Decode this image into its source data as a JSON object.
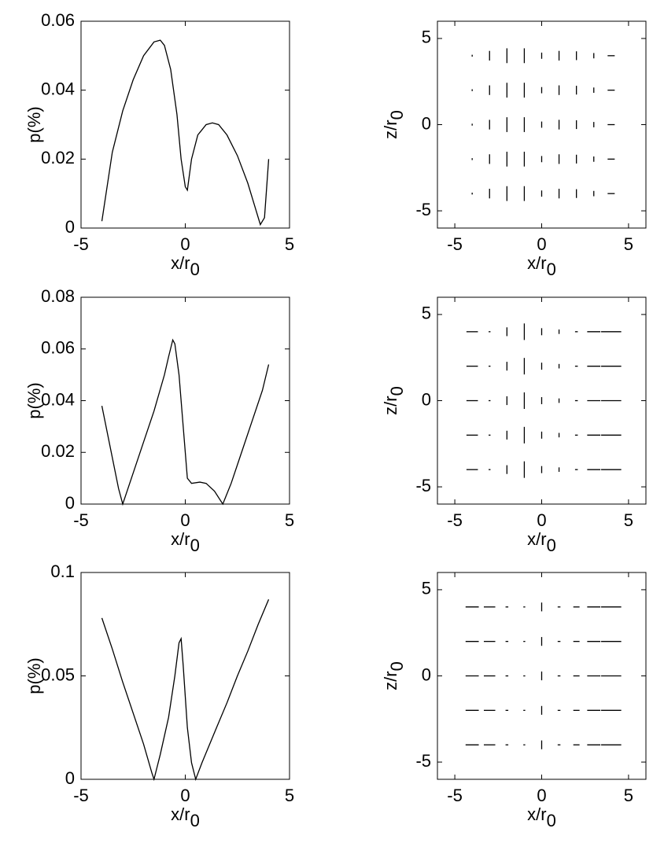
{
  "chart_data": [
    {
      "type": "line",
      "x_label": "x/r",
      "x_label_sub": "0",
      "y_label": "p(%)",
      "color": "#000000",
      "xlim": [
        -5,
        5
      ],
      "xticks": [
        -5,
        0,
        5
      ],
      "ylim": [
        0,
        0.06
      ],
      "yticks": [
        0,
        0.02,
        0.04,
        0.06
      ],
      "x": [
        -4,
        -3.5,
        -3,
        -2.5,
        -2,
        -1.5,
        -1.2,
        -1,
        -0.7,
        -0.4,
        -0.2,
        0,
        0.1,
        0.3,
        0.6,
        1,
        1.3,
        1.6,
        2,
        2.5,
        3,
        3.4,
        3.6,
        3.8,
        4
      ],
      "values": [
        0.002,
        0.022,
        0.034,
        0.043,
        0.05,
        0.054,
        0.0545,
        0.053,
        0.046,
        0.033,
        0.02,
        0.012,
        0.011,
        0.02,
        0.027,
        0.03,
        0.0305,
        0.03,
        0.027,
        0.021,
        0.013,
        0.005,
        0.001,
        0.003,
        0.02
      ]
    },
    {
      "type": "quiver",
      "x_label": "x/r",
      "x_label_sub": "0",
      "y_label": "z/r",
      "y_label_sub": "0",
      "color": "#000000",
      "xlim": [
        -6,
        6
      ],
      "xticks": [
        -5,
        0,
        5
      ],
      "ylim": [
        -6,
        6
      ],
      "yticks": [
        -5,
        0,
        5
      ],
      "x": [
        -4,
        -3,
        -2,
        -1,
        0,
        1,
        2,
        3,
        4
      ],
      "z": [
        4,
        2,
        0,
        -2,
        -4
      ],
      "lengths": [
        0.05,
        0.5,
        0.8,
        0.8,
        0.3,
        0.5,
        0.45,
        0.25,
        0.35
      ],
      "angles": [
        90,
        90,
        90,
        90,
        90,
        90,
        90,
        90,
        0
      ]
    },
    {
      "type": "line",
      "x_label": "x/r",
      "x_label_sub": "0",
      "y_label": "p(%)",
      "color": "#000000",
      "xlim": [
        -5,
        5
      ],
      "xticks": [
        -5,
        0,
        5
      ],
      "ylim": [
        0,
        0.08
      ],
      "yticks": [
        0,
        0.02,
        0.04,
        0.06,
        0.08
      ],
      "x": [
        -4,
        -3.5,
        -3.2,
        -3,
        -2.5,
        -2,
        -1.5,
        -1,
        -0.8,
        -0.6,
        -0.5,
        -0.3,
        -0.1,
        0.1,
        0.3,
        0.7,
        1,
        1.4,
        1.8,
        2.2,
        2.7,
        3.2,
        3.7,
        4
      ],
      "values": [
        0.038,
        0.018,
        0.006,
        0,
        0.012,
        0.024,
        0.036,
        0.05,
        0.057,
        0.0635,
        0.062,
        0.05,
        0.03,
        0.01,
        0.008,
        0.0085,
        0.008,
        0.005,
        0,
        0.008,
        0.02,
        0.032,
        0.044,
        0.054
      ]
    },
    {
      "type": "quiver",
      "x_label": "x/r",
      "x_label_sub": "0",
      "y_label": "z/r",
      "y_label_sub": "0",
      "color": "#000000",
      "xlim": [
        -6,
        6
      ],
      "xticks": [
        -5,
        0,
        5
      ],
      "ylim": [
        -6,
        6
      ],
      "yticks": [
        -5,
        0,
        5
      ],
      "x": [
        -4,
        -3,
        -2,
        -1,
        0,
        1,
        2,
        3,
        4
      ],
      "z": [
        4,
        2,
        0,
        -2,
        -4
      ],
      "lengths": [
        0.6,
        0.05,
        0.45,
        0.9,
        0.35,
        0.2,
        0.1,
        0.7,
        1.1
      ],
      "angles": [
        0,
        0,
        90,
        90,
        90,
        90,
        0,
        0,
        0
      ]
    },
    {
      "type": "line",
      "x_label": "x/r",
      "x_label_sub": "0",
      "y_label": "p(%)",
      "color": "#000000",
      "xlim": [
        -5,
        5
      ],
      "xticks": [
        -5,
        0,
        5
      ],
      "ylim": [
        0,
        0.1
      ],
      "yticks": [
        0,
        0.05,
        0.1
      ],
      "x": [
        -4,
        -3.5,
        -3,
        -2.5,
        -2,
        -1.6,
        -1.5,
        -1.2,
        -0.8,
        -0.5,
        -0.3,
        -0.2,
        -0.1,
        0.1,
        0.3,
        0.5,
        0.8,
        1.5,
        2,
        2.5,
        3,
        3.5,
        4
      ],
      "values": [
        0.078,
        0.063,
        0.047,
        0.032,
        0.017,
        0.003,
        0,
        0.012,
        0.03,
        0.05,
        0.066,
        0.068,
        0.055,
        0.025,
        0.008,
        0,
        0.008,
        0.025,
        0.037,
        0.05,
        0.062,
        0.075,
        0.087
      ]
    },
    {
      "type": "quiver",
      "x_label": "x/r",
      "x_label_sub": "0",
      "y_label": "z/r",
      "y_label_sub": "0",
      "color": "#000000",
      "xlim": [
        -6,
        6
      ],
      "xticks": [
        -5,
        0,
        5
      ],
      "ylim": [
        -6,
        6
      ],
      "yticks": [
        -5,
        0,
        5
      ],
      "x": [
        -4,
        -3,
        -2,
        -1,
        0,
        1,
        2,
        3,
        4
      ],
      "z": [
        4,
        2,
        0,
        -2,
        -4
      ],
      "lengths": [
        0.7,
        0.6,
        0.1,
        0.05,
        0.45,
        0.1,
        0.3,
        0.7,
        1.1
      ],
      "angles": [
        0,
        0,
        0,
        0,
        90,
        0,
        0,
        0,
        0
      ]
    }
  ]
}
